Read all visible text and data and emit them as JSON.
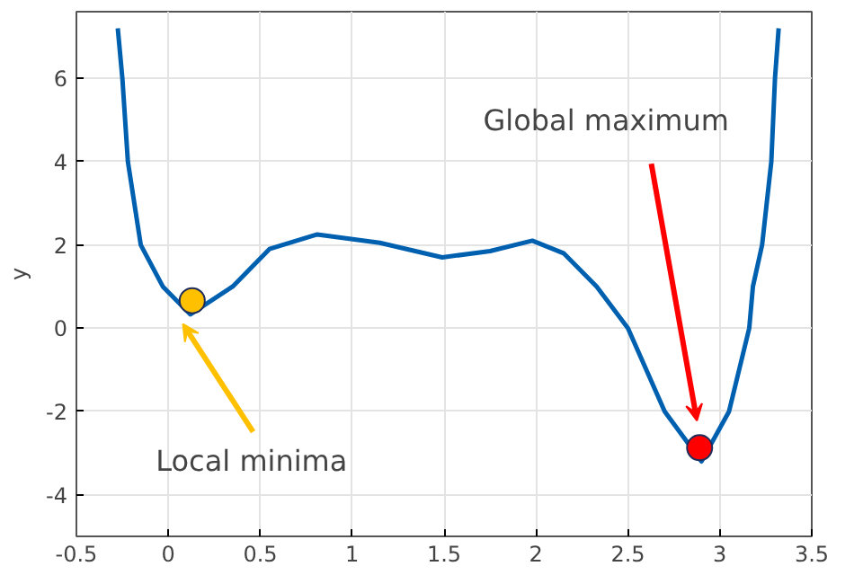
{
  "chart_data": {
    "type": "line",
    "ylabel": "y",
    "xlim": [
      -0.5,
      3.5
    ],
    "ylim": [
      -5,
      7.6
    ],
    "xticks": [
      -0.5,
      0,
      0.5,
      1,
      1.5,
      2,
      2.5,
      3,
      3.5
    ],
    "yticks": [
      -4,
      -2,
      0,
      2,
      4,
      6
    ],
    "grid": true,
    "series": [
      {
        "color": "#0060b0",
        "x": [
          -0.275,
          -0.25,
          -0.22,
          -0.15,
          -0.03,
          0.12,
          0.35,
          0.55,
          0.81,
          1.15,
          1.49,
          1.75,
          1.98,
          2.15,
          2.33,
          2.5,
          2.7,
          2.9,
          3.05,
          3.16,
          3.18,
          3.23,
          3.28,
          3.3,
          3.32
        ],
        "values": [
          7.2,
          6,
          4,
          2,
          1,
          0.33,
          1,
          1.9,
          2.25,
          2.05,
          1.7,
          1.85,
          2.1,
          1.8,
          1,
          0,
          -2,
          -3.2,
          -2,
          0,
          1,
          2,
          4,
          6,
          7.2
        ]
      },
      {
        "type": "scatter",
        "color": "#ffc000",
        "x": [
          0.13
        ],
        "values": [
          0.66
        ]
      },
      {
        "type": "scatter",
        "color": "#ff0000",
        "x": [
          2.89
        ],
        "values": [
          -2.87
        ]
      }
    ],
    "annotations": [
      "Local minima",
      "Global maximum"
    ]
  }
}
